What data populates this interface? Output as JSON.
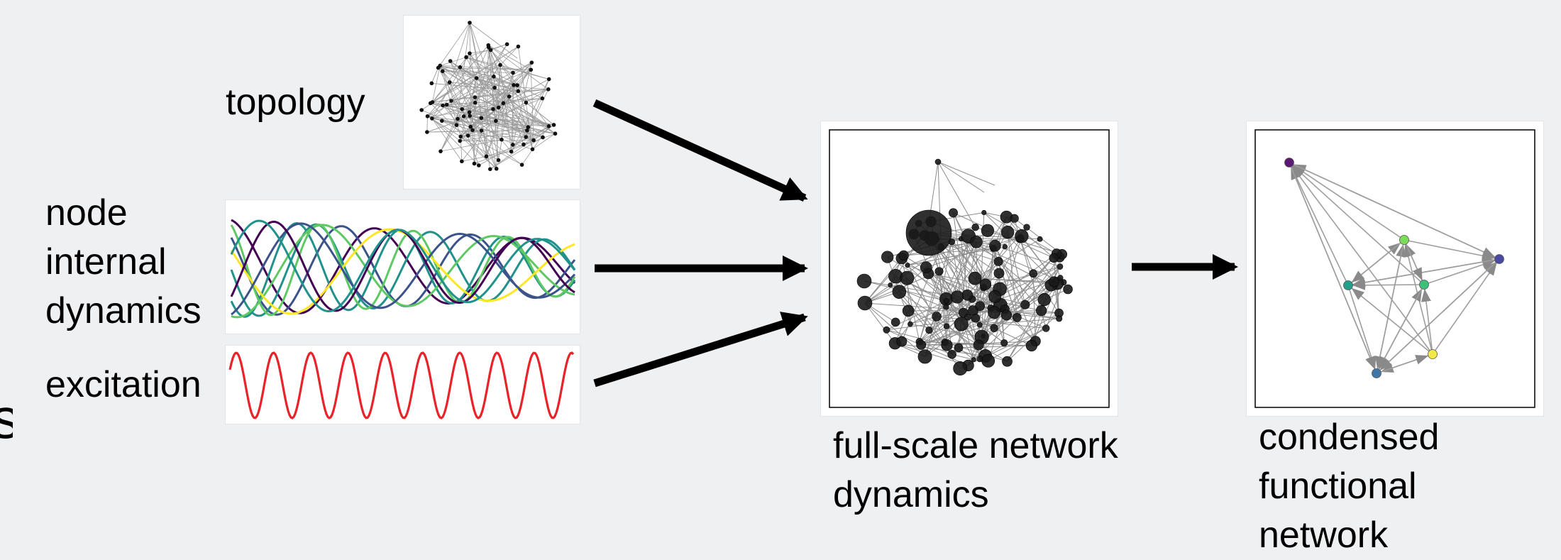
{
  "labels": {
    "topology": "topology",
    "node_dynamics": "node\ninternal\ndynamics",
    "excitation": "excitation",
    "full_scale": "full-scale network\ndynamics",
    "condensed": "condensed\nfunctional\nnetwork",
    "cut_glyph": "s"
  },
  "colors": {
    "background": "#eff0f2",
    "arrow": "#000000",
    "edge_gray": "#9a9a9a",
    "node_black": "#1a1a1a",
    "excitation_red": "#e8232a",
    "viridis": [
      "#440154",
      "#3b528b",
      "#21918c",
      "#5ec962",
      "#fde725"
    ]
  },
  "icons": {
    "topology_panel": "random-network-graph",
    "dynamics_panel": "oscillation-traces",
    "excitation_panel": "sine-wave",
    "full_network_panel": "weighted-network-graph",
    "condensed_panel": "directed-functional-graph"
  }
}
